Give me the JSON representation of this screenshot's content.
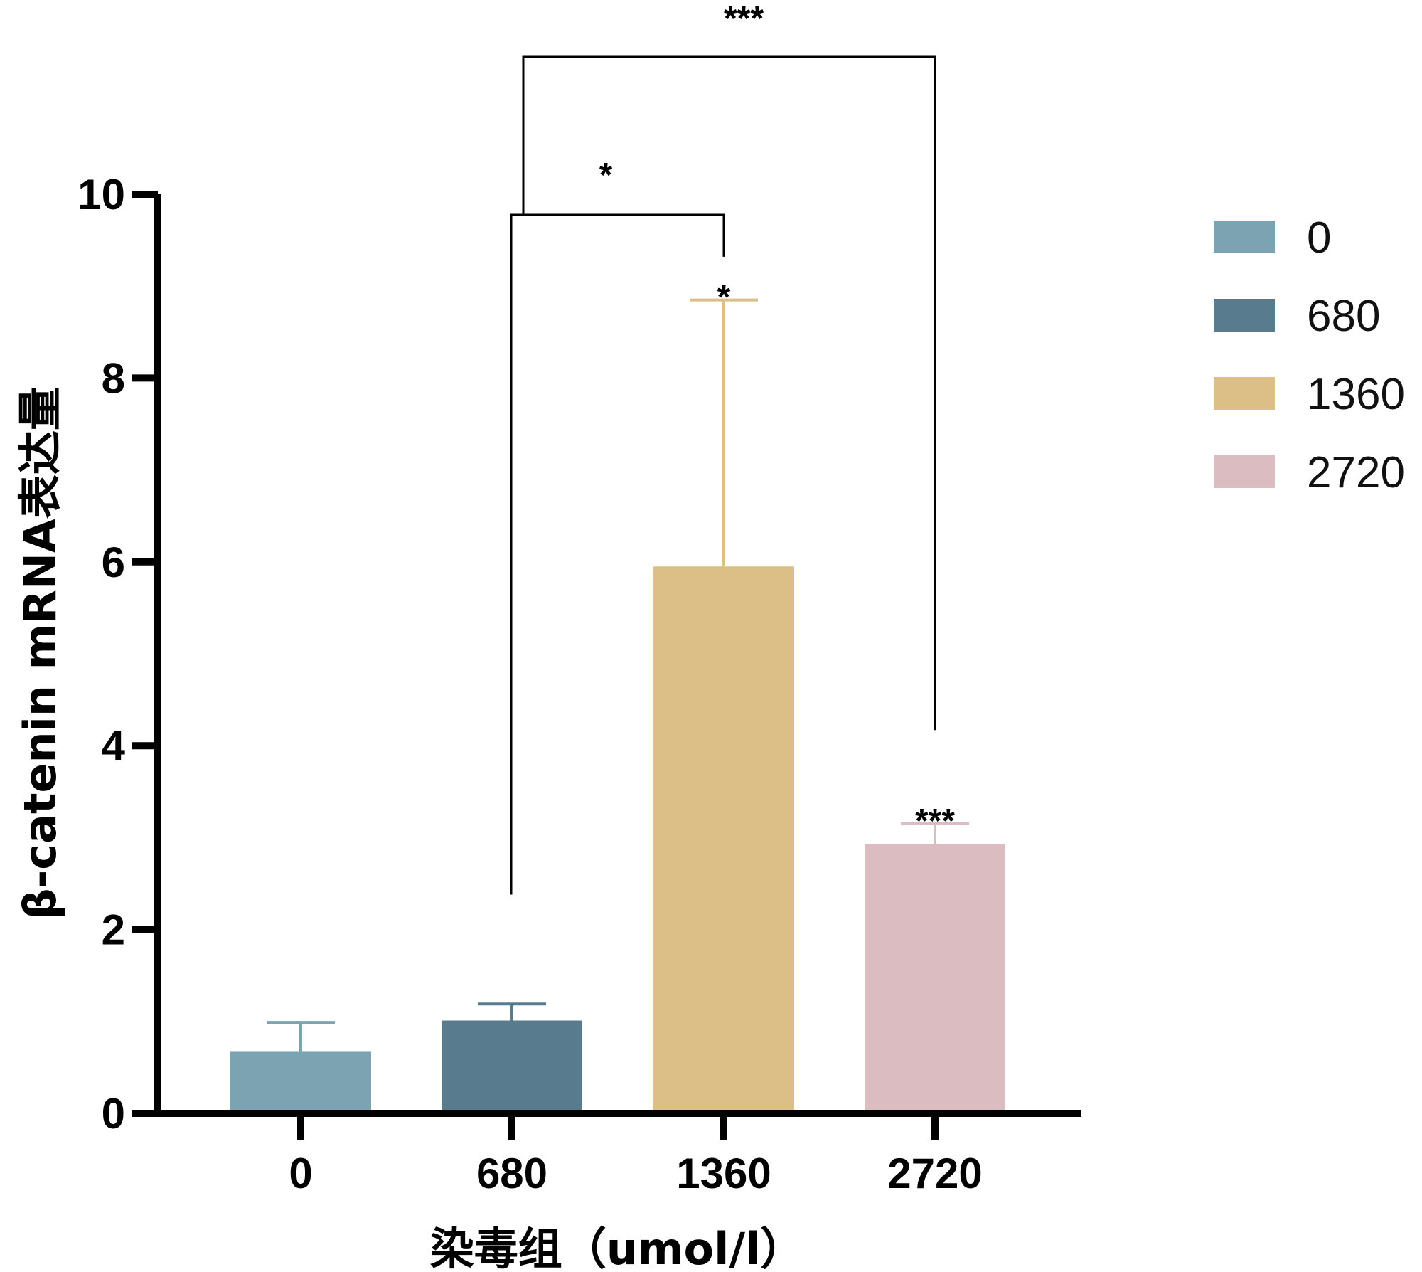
{
  "chart_data": {
    "type": "bar",
    "title": "",
    "xlabel": "染毒组（umol/l）",
    "ylabel": "β-catenin mRNA表达量",
    "ylim": [
      0,
      10
    ],
    "yticks": [
      "0",
      "2",
      "4",
      "6",
      "8",
      "10"
    ],
    "categories": [
      "0",
      "680",
      "1360",
      "2720"
    ],
    "values": [
      0.67,
      1.01,
      5.95,
      2.93
    ],
    "error_upper": [
      0.99,
      1.19,
      8.85,
      3.15
    ],
    "colors": [
      "#7BA3B2",
      "#587B8D",
      "#DCBF86",
      "#DBBCC1"
    ],
    "bar_labels": [
      "",
      "",
      "*",
      "***"
    ],
    "legend": {
      "placement": "right",
      "entries": [
        "0",
        "680",
        "1360",
        "2720"
      ]
    },
    "comparisons": [
      {
        "from": "680",
        "to": "1360",
        "label": "*"
      },
      {
        "from": "680",
        "to": "2720",
        "label": "***"
      }
    ]
  }
}
